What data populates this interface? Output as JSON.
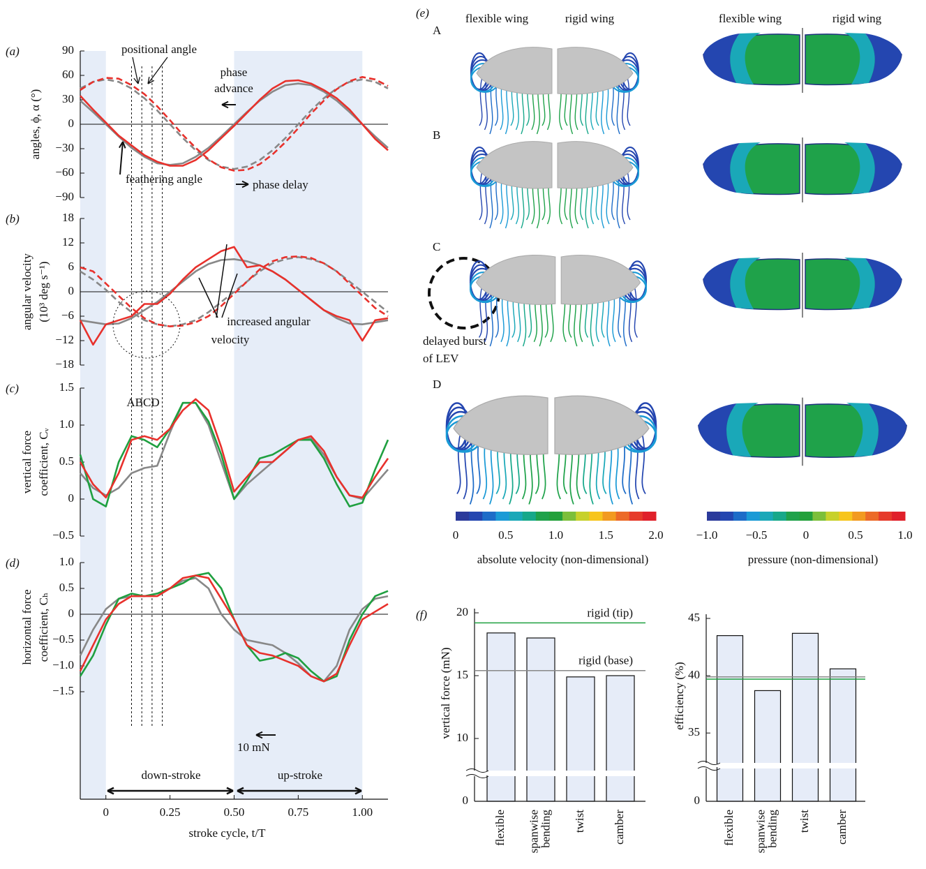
{
  "chart_data": [
    {
      "type": "line",
      "panel_label": "(a)",
      "ylabel": [
        "angles, ϕ, α (°)"
      ],
      "x": [
        -0.1,
        -0.05,
        0,
        0.05,
        0.1,
        0.15,
        0.2,
        0.25,
        0.3,
        0.35,
        0.4,
        0.45,
        0.5,
        0.55,
        0.6,
        0.65,
        0.7,
        0.75,
        0.8,
        0.85,
        0.9,
        0.95,
        1.0,
        1.05,
        1.1
      ],
      "xlim": [
        -0.1,
        1.1
      ],
      "ylim": [
        -90,
        90
      ],
      "yticks": [
        {
          "value": -90,
          "label": "−90"
        },
        {
          "value": -60,
          "label": "−60"
        },
        {
          "value": -30,
          "label": "−30"
        },
        0,
        30,
        60,
        90
      ],
      "zero_line": true,
      "series": [
        {
          "color": "#888888",
          "dash": false,
          "values": [
            29,
            15,
            0,
            -15,
            -29,
            -40,
            -48,
            -50,
            -48,
            -40,
            -29,
            -15,
            0,
            15,
            29,
            40,
            48,
            50,
            48,
            40,
            29,
            15,
            0,
            -15,
            -29
          ]
        },
        {
          "color": "#e8312c",
          "dash": false,
          "values": [
            35,
            18,
            2,
            -14,
            -26,
            -38,
            -46,
            -51,
            -51,
            -44,
            -32,
            -17,
            -2,
            14,
            30,
            44,
            53,
            54,
            50,
            42,
            32,
            18,
            0,
            -18,
            -32
          ]
        },
        {
          "color": "#888888",
          "dash": true,
          "values": [
            44,
            52,
            55,
            52,
            44,
            32,
            17,
            0,
            -17,
            -32,
            -44,
            -52,
            -55,
            -52,
            -44,
            -32,
            -17,
            0,
            17,
            32,
            44,
            52,
            55,
            52,
            44
          ]
        },
        {
          "color": "#e8312c",
          "dash": true,
          "values": [
            42,
            52,
            57,
            56,
            48,
            37,
            22,
            5,
            -13,
            -29,
            -43,
            -53,
            -57,
            -56,
            -49,
            -37,
            -22,
            -5,
            13,
            29,
            43,
            53,
            58,
            55,
            47
          ]
        }
      ],
      "annotations": [
        "positional angle",
        "phase",
        "advance",
        "feathering angle",
        "phase delay"
      ]
    },
    {
      "type": "line",
      "panel_label": "(b)",
      "ylabel": [
        "angular velocity",
        "(10³ deg s⁻¹)"
      ],
      "x": [
        -0.1,
        -0.05,
        0,
        0.05,
        0.1,
        0.15,
        0.2,
        0.25,
        0.3,
        0.35,
        0.4,
        0.45,
        0.5,
        0.55,
        0.6,
        0.65,
        0.7,
        0.75,
        0.8,
        0.85,
        0.9,
        0.95,
        1.0,
        1.05,
        1.1
      ],
      "xlim": [
        -0.1,
        1.1
      ],
      "ylim": [
        -18,
        18
      ],
      "yticks": [
        {
          "value": -18,
          "label": "−18"
        },
        {
          "value": -12,
          "label": "−12"
        },
        {
          "value": -6,
          "label": "−6"
        },
        0,
        6,
        12,
        18
      ],
      "zero_line": true,
      "series": [
        {
          "color": "#888888",
          "dash": true,
          "values": [
            5,
            3,
            0.5,
            -2.5,
            -5,
            -7,
            -8,
            -8.5,
            -8,
            -7,
            -5,
            -2.5,
            0,
            2.5,
            5,
            7,
            8,
            8.5,
            8,
            7,
            5,
            2.5,
            0,
            -2.5,
            -5
          ]
        },
        {
          "color": "#e8312c",
          "dash": true,
          "values": [
            6,
            5,
            2,
            -1,
            -4,
            -6.5,
            -8,
            -8.5,
            -8.3,
            -7.5,
            -6,
            -3.5,
            -0.5,
            2.5,
            5.5,
            7.5,
            8.5,
            8.7,
            8.3,
            7,
            5,
            2,
            -1,
            -4,
            -6
          ]
        },
        {
          "color": "#888888",
          "dash": false,
          "values": [
            -7,
            -7.5,
            -8,
            -7.8,
            -6.5,
            -4.5,
            -2.5,
            0,
            2.5,
            5,
            6.8,
            7.8,
            8,
            7.5,
            6.5,
            5,
            3,
            0.5,
            -2,
            -4.5,
            -6.5,
            -7.8,
            -8,
            -7.5,
            -7
          ]
        },
        {
          "color": "#e8312c",
          "dash": false,
          "values": [
            -7,
            -13,
            -8,
            -7,
            -6,
            -3,
            -3,
            -0.5,
            3,
            6,
            8,
            10,
            11,
            6,
            6.5,
            5,
            3,
            0.5,
            -2,
            -4.5,
            -6,
            -7,
            -12,
            -7,
            -6.5
          ]
        }
      ],
      "annotations": [
        "increased angular",
        "velocity"
      ]
    },
    {
      "type": "line",
      "panel_label": "(c)",
      "ylabel": [
        "vertical force",
        "coefficient, Cᵥ"
      ],
      "x": [
        -0.1,
        -0.05,
        0,
        0.05,
        0.1,
        0.15,
        0.2,
        0.25,
        0.3,
        0.35,
        0.4,
        0.45,
        0.5,
        0.55,
        0.6,
        0.65,
        0.7,
        0.75,
        0.8,
        0.85,
        0.9,
        0.95,
        1.0,
        1.05,
        1.1
      ],
      "xlim": [
        -0.1,
        1.1
      ],
      "ylim": [
        -0.5,
        1.5
      ],
      "yticks": [
        {
          "value": -0.5,
          "label": "−0.5"
        },
        0,
        0.5,
        {
          "value": 1,
          "label": "1.0"
        },
        1.5
      ],
      "zero_line": false,
      "series": [
        {
          "color": "#888888",
          "dash": false,
          "values": [
            0.35,
            0.15,
            0.05,
            0.15,
            0.35,
            0.42,
            0.45,
            0.9,
            1.3,
            1.3,
            1.0,
            0.5,
            0.0,
            0.2,
            0.35,
            0.5,
            0.65,
            0.8,
            0.82,
            0.6,
            0.3,
            0.05,
            0.0,
            0.2,
            0.4
          ]
        },
        {
          "color": "#1fa040",
          "dash": false,
          "values": [
            0.6,
            0.0,
            -0.1,
            0.5,
            0.85,
            0.8,
            0.7,
            0.95,
            1.3,
            1.3,
            1.05,
            0.6,
            0.0,
            0.25,
            0.55,
            0.6,
            0.7,
            0.8,
            0.8,
            0.55,
            0.2,
            -0.1,
            -0.05,
            0.4,
            0.8
          ]
        },
        {
          "color": "#e8312c",
          "dash": false,
          "values": [
            0.5,
            0.2,
            0.02,
            0.35,
            0.8,
            0.85,
            0.8,
            0.95,
            1.2,
            1.35,
            1.2,
            0.7,
            0.1,
            0.3,
            0.5,
            0.5,
            0.65,
            0.8,
            0.85,
            0.65,
            0.3,
            0.05,
            0.02,
            0.3,
            0.55
          ]
        }
      ],
      "annotations": [
        "ABCD"
      ]
    },
    {
      "type": "line",
      "panel_label": "(d)",
      "ylabel": [
        "horizontal force",
        "coefficient, Cₕ"
      ],
      "xlabel": "stroke cycle, t/T",
      "x": [
        -0.1,
        -0.05,
        0,
        0.05,
        0.1,
        0.15,
        0.2,
        0.25,
        0.3,
        0.35,
        0.4,
        0.45,
        0.5,
        0.55,
        0.6,
        0.65,
        0.7,
        0.75,
        0.8,
        0.85,
        0.9,
        0.95,
        1.0,
        1.05,
        1.1
      ],
      "xlim": [
        -0.1,
        1.1
      ],
      "ylim": [
        -1.5,
        1.0
      ],
      "xticks": [
        0,
        0.25,
        {
          "value": 0.5,
          "label": "0.50"
        },
        0.75,
        {
          "value": 1,
          "label": "1.00"
        }
      ],
      "yticks": [
        {
          "value": -1.5,
          "label": "−1.5"
        },
        {
          "value": -1,
          "label": "−1.0"
        },
        {
          "value": -0.5,
          "label": "−0.5"
        },
        0,
        0.5,
        {
          "value": 1,
          "label": "1.0"
        }
      ],
      "zero_line": true,
      "bands": [
        [
          -0.1,
          0
        ],
        [
          0.5,
          1.0
        ]
      ],
      "reference_x": [
        0.1,
        0.14,
        0.18,
        0.22
      ],
      "series": [
        {
          "color": "#888888",
          "dash": false,
          "values": [
            -0.8,
            -0.3,
            0.1,
            0.3,
            0.35,
            0.35,
            0.4,
            0.5,
            0.65,
            0.7,
            0.5,
            0.0,
            -0.3,
            -0.5,
            -0.55,
            -0.6,
            -0.75,
            -0.95,
            -1.2,
            -1.3,
            -1.0,
            -0.3,
            0.1,
            0.3,
            0.35
          ]
        },
        {
          "color": "#1fa040",
          "dash": false,
          "values": [
            -1.2,
            -0.8,
            -0.2,
            0.3,
            0.4,
            0.35,
            0.4,
            0.5,
            0.6,
            0.75,
            0.8,
            0.5,
            -0.1,
            -0.6,
            -0.9,
            -0.85,
            -0.75,
            -0.85,
            -1.1,
            -1.3,
            -1.2,
            -0.5,
            0.0,
            0.35,
            0.45
          ]
        },
        {
          "color": "#e8312c",
          "dash": false,
          "values": [
            -1.1,
            -0.6,
            -0.1,
            0.2,
            0.35,
            0.35,
            0.35,
            0.5,
            0.7,
            0.75,
            0.7,
            0.3,
            -0.1,
            -0.6,
            -0.75,
            -0.8,
            -0.9,
            -1.0,
            -1.2,
            -1.3,
            -1.15,
            -0.6,
            -0.1,
            0.05,
            0.2
          ]
        }
      ],
      "annotations": [
        "10 mN",
        "down-stroke",
        "up-stroke"
      ]
    },
    {
      "type": "bar",
      "panel_label": "(f)",
      "ylabel": "vertical force (mN)",
      "categories": [
        "flexible",
        "spanwise bending",
        "twist",
        "camber"
      ],
      "values": [
        18.4,
        18.0,
        14.9,
        15.0
      ],
      "color": "#e6ecf8",
      "ylim": [
        0,
        20
      ],
      "yticks": [
        0,
        10,
        15,
        20
      ],
      "axis_break": 8,
      "reference_lines": [
        {
          "label": "rigid (tip)",
          "value": 19.2,
          "color": "#1fa040"
        },
        {
          "label": "rigid (base)",
          "value": 15.4,
          "color": "#888888"
        }
      ]
    },
    {
      "type": "bar",
      "ylabel": "efficiency (%)",
      "categories": [
        "flexible",
        "spanwise bending",
        "twist",
        "camber"
      ],
      "values": [
        43.5,
        38.7,
        43.7,
        40.6
      ],
      "color": "#e6ecf8",
      "ylim": [
        0,
        45
      ],
      "yticks": [
        0,
        35,
        40,
        45
      ],
      "axis_break": 33,
      "reference_lines": [
        {
          "value": 39.9,
          "color": "#888888"
        },
        {
          "value": 39.7,
          "color": "#1fa040"
        }
      ]
    }
  ],
  "panel_e": {
    "panel_label": "(e)",
    "column_headers": [
      "flexible wing",
      "rigid wing",
      "flexible wing",
      "rigid wing"
    ],
    "rows": [
      "A",
      "B",
      "C",
      "D"
    ],
    "annotation": [
      "delayed burst",
      "of LEV"
    ],
    "colormap": [
      "#2b3a9b",
      "#2446b0",
      "#1d6cc8",
      "#1a9ad6",
      "#1aa8b8",
      "#17a88a",
      "#1fa24a",
      "#23a03a",
      "#7cbf3a",
      "#c7d12b",
      "#f7c51c",
      "#f29a20",
      "#ec6a28",
      "#e63a2a",
      "#e0202a"
    ],
    "velocity_colorbar": {
      "lim": [
        0,
        2
      ],
      "ticks": [
        0,
        0.5,
        {
          "value": 1,
          "label": "1.0"
        },
        1.5,
        {
          "value": 2,
          "label": "2.0"
        }
      ],
      "label": "absolute velocity (non-dimensional)"
    },
    "pressure_colorbar": {
      "lim": [
        -1,
        1
      ],
      "ticks": [
        {
          "value": -1,
          "label": "−1.0"
        },
        {
          "value": -0.5,
          "label": "−0.5"
        },
        0,
        0.5,
        {
          "value": 1,
          "label": "1.0"
        }
      ],
      "label": "pressure (non-dimensional)"
    }
  }
}
